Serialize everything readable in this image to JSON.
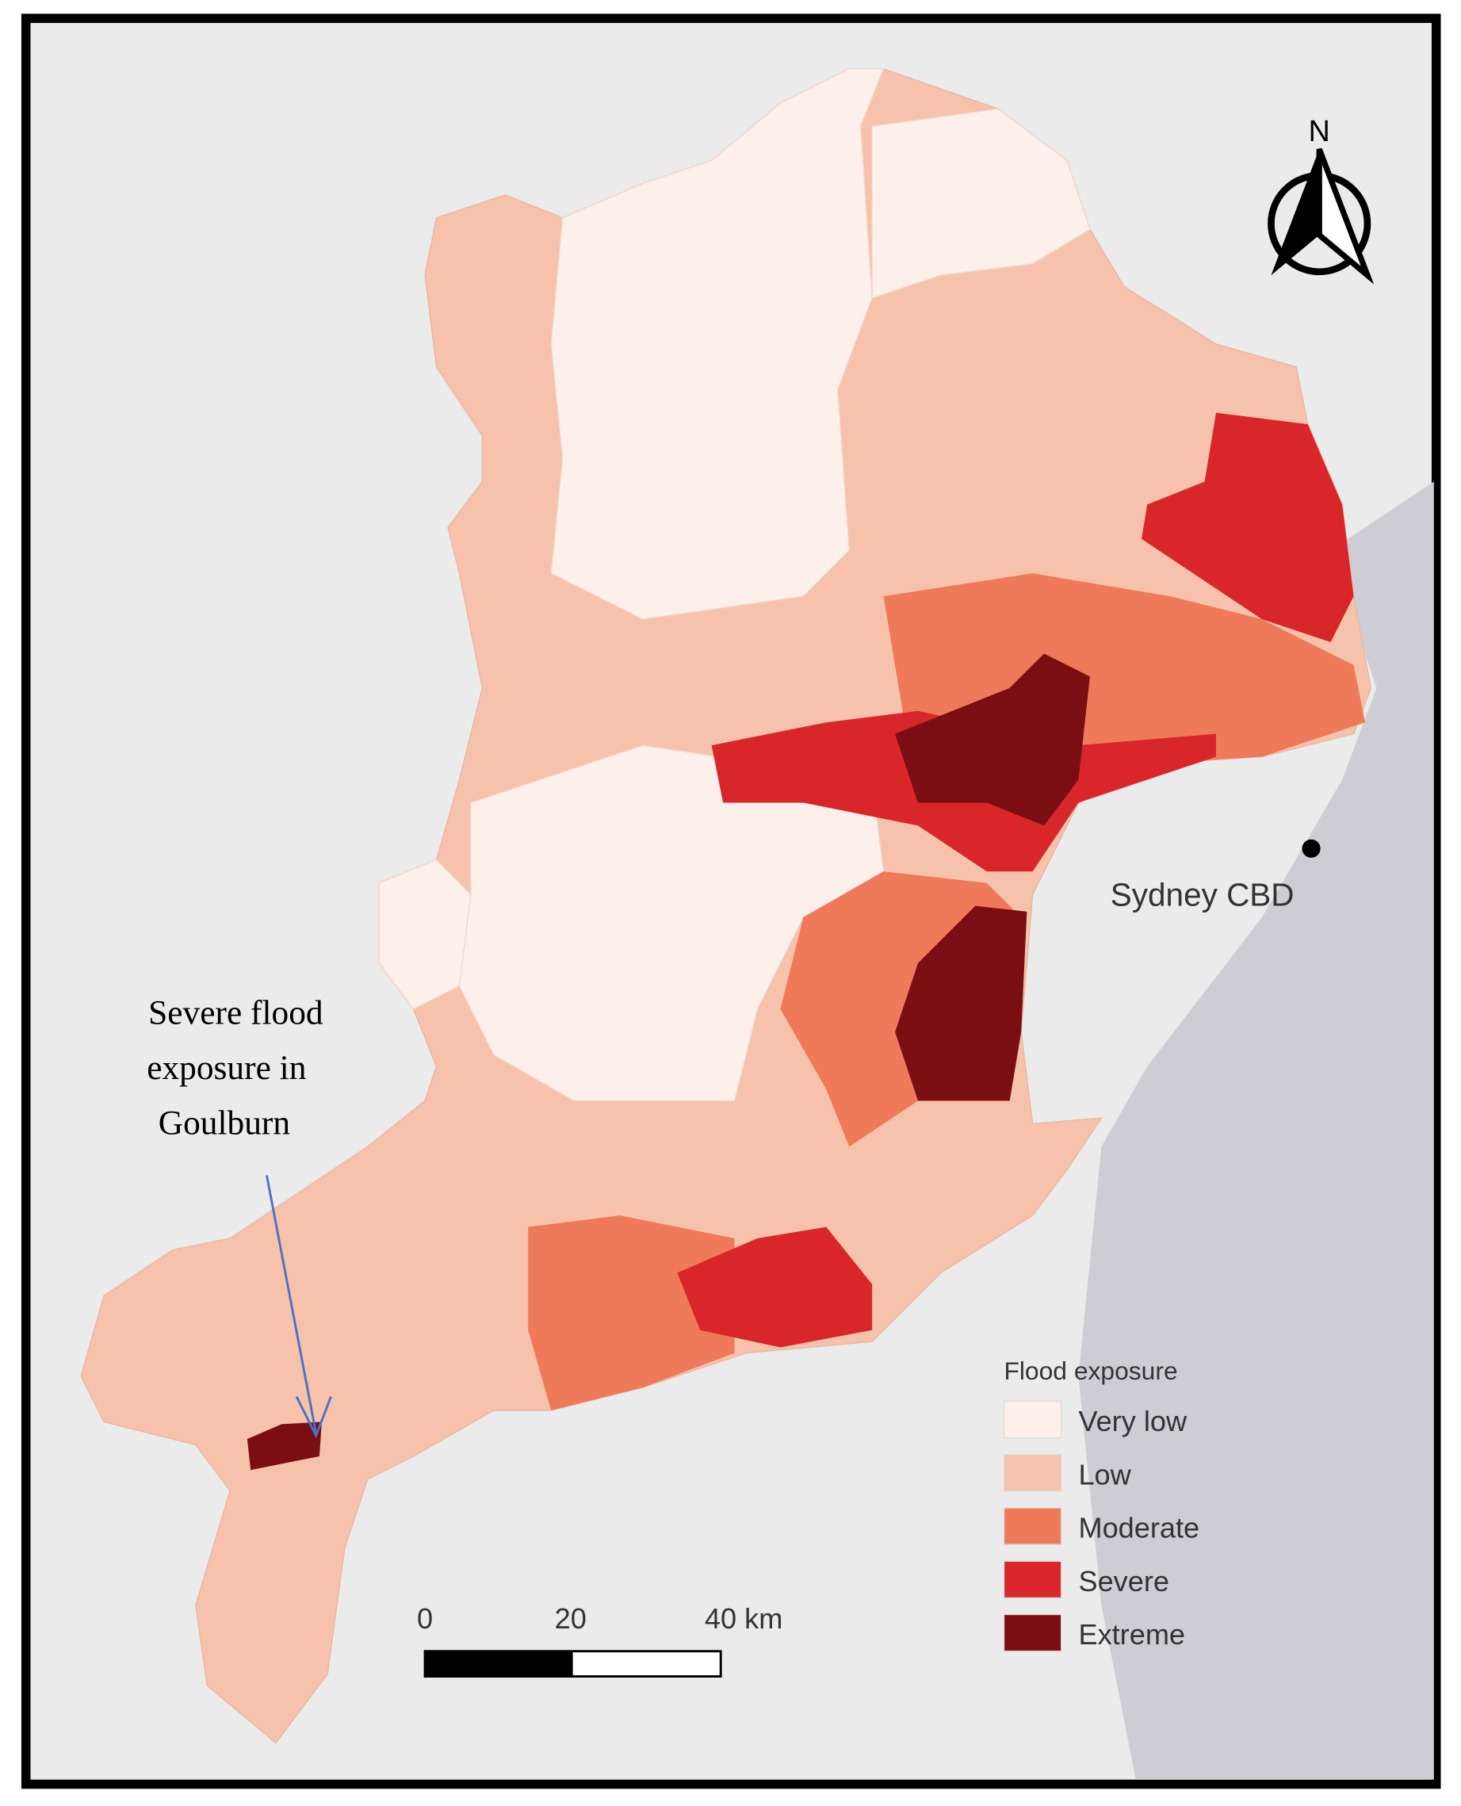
{
  "map": {
    "annotation": {
      "lines": [
        "Severe flood",
        "exposure in",
        "Goulburn"
      ]
    },
    "place_label": "Sydney CBD",
    "north_label": "N",
    "legend": {
      "title": "Flood exposure",
      "items": [
        {
          "label": "Very low",
          "color": "#fdf0ea"
        },
        {
          "label": "Low",
          "color": "#f6c2ab"
        },
        {
          "label": "Moderate",
          "color": "#ef7a5a"
        },
        {
          "label": "Severe",
          "color": "#d8262a"
        },
        {
          "label": "Extreme",
          "color": "#7a0e12"
        }
      ]
    },
    "scale_bar": {
      "labels": [
        "0",
        "20",
        "40 km"
      ]
    }
  }
}
